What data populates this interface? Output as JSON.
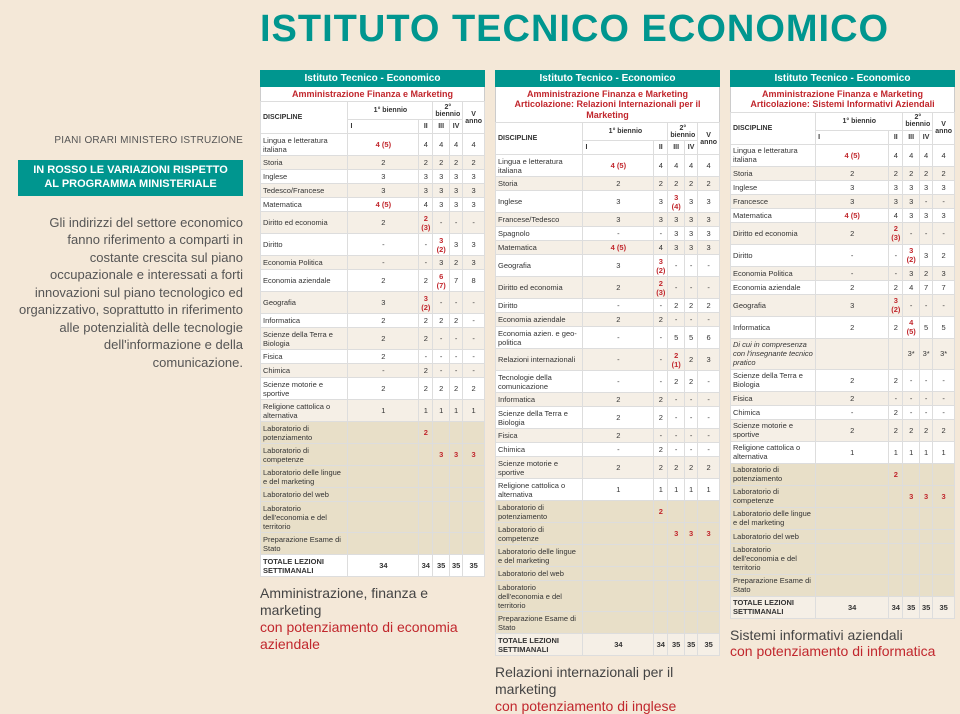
{
  "pageTitle": "ISTITUTO TECNICO ECONOMICO",
  "piani": "PIANI ORARI MINISTERO ISTRUZIONE",
  "variazioni": "IN ROSSO LE VARIAZIONI RISPETTO AL PROGRAMMA MINISTERIALE",
  "intro": "Gli indirizzi del settore economico fanno riferimento a comparti in costante crescita sul piano occupazionale e interessati a forti innovazioni sul piano tecnologico ed organizzativo, soprattutto in riferimento alle potenzialità delle tecnologie dell'informazione e della comunicazione.",
  "hdr": {
    "top": "Istituto Tecnico - Economico",
    "b1": "1° biennio",
    "b2": "2° biennio",
    "disc": "DISCIPLINE",
    "i": "I",
    "ii": "II",
    "iii": "III",
    "iv": "IV",
    "v": "V anno"
  },
  "sub": {
    "t1": "Amministrazione Finanza e Marketing",
    "t2": "Amministrazione Finanza e Marketing Articolazione: Relazioni Internazionali per il Marketing",
    "t3": "Amministrazione Finanza e Marketing Articolazione: Sistemi Informativi Aziendali"
  },
  "tables": {
    "t1": [
      {
        "n": "Lingua e letteratura italiana",
        "v": [
          "4 (5)",
          "4",
          "4",
          "4",
          "4"
        ],
        "r": [
          true,
          false,
          false,
          false,
          false
        ]
      },
      {
        "n": "Storia",
        "v": [
          "2",
          "2",
          "2",
          "2",
          "2"
        ]
      },
      {
        "n": "Inglese",
        "v": [
          "3",
          "3",
          "3",
          "3",
          "3"
        ]
      },
      {
        "n": "Tedesco/Francese",
        "v": [
          "3",
          "3",
          "3",
          "3",
          "3"
        ]
      },
      {
        "n": "Matematica",
        "v": [
          "4 (5)",
          "4",
          "3",
          "3",
          "3"
        ],
        "r": [
          true,
          false,
          false,
          false,
          false
        ]
      },
      {
        "n": "Diritto ed economia",
        "v": [
          "2",
          "2 (3)",
          "-",
          "-",
          "-"
        ],
        "r": [
          false,
          true,
          false,
          false,
          false
        ]
      },
      {
        "n": "Diritto",
        "v": [
          "-",
          "-",
          "3 (2)",
          "3",
          "3"
        ],
        "r": [
          false,
          false,
          true,
          false,
          false
        ]
      },
      {
        "n": "Economia Politica",
        "v": [
          "-",
          "-",
          "3",
          "2",
          "3"
        ]
      },
      {
        "n": "Economia aziendale",
        "v": [
          "2",
          "2",
          "6 (7)",
          "7",
          "8"
        ],
        "r": [
          false,
          false,
          true,
          false,
          false
        ]
      },
      {
        "n": "Geografia",
        "v": [
          "3",
          "3 (2)",
          "-",
          "-",
          "-"
        ],
        "r": [
          false,
          true,
          false,
          false,
          false
        ]
      },
      {
        "n": "Informatica",
        "v": [
          "2",
          "2",
          "2",
          "2",
          "-"
        ]
      },
      {
        "n": "Scienze della Terra e Biologia",
        "v": [
          "2",
          "2",
          "-",
          "-",
          "-"
        ]
      },
      {
        "n": "Fisica",
        "v": [
          "2",
          "-",
          "-",
          "-",
          "-"
        ]
      },
      {
        "n": "Chimica",
        "v": [
          "-",
          "2",
          "-",
          "-",
          "-"
        ]
      },
      {
        "n": "Scienze motorie e sportive",
        "v": [
          "2",
          "2",
          "2",
          "2",
          "2"
        ]
      },
      {
        "n": "Religione cattolica o alternativa",
        "v": [
          "1",
          "1",
          "1",
          "1",
          "1"
        ]
      },
      {
        "n": "Laboratorio di potenziamento",
        "v": [
          "",
          "2",
          "",
          "",
          ""
        ],
        "lab": true,
        "r": [
          false,
          true,
          false,
          false,
          false
        ]
      },
      {
        "n": "Laboratorio di competenze",
        "v": [
          "",
          "",
          "3",
          "3",
          "3"
        ],
        "lab": true,
        "r": [
          false,
          false,
          true,
          true,
          true
        ]
      },
      {
        "n": "Laboratorio delle lingue e del marketing",
        "v": [
          "",
          "",
          "",
          "",
          ""
        ],
        "lab": true
      },
      {
        "n": "Laboratorio del web",
        "v": [
          "",
          "",
          "",
          "",
          ""
        ],
        "lab": true
      },
      {
        "n": "Laboratorio dell'economia e del territorio",
        "v": [
          "",
          "",
          "",
          "",
          ""
        ],
        "lab": true
      },
      {
        "n": "Preparazione Esame di Stato",
        "v": [
          "",
          "",
          "",
          "",
          ""
        ],
        "lab": true
      },
      {
        "n": "TOTALE LEZIONI SETTIMANALI",
        "v": [
          "34",
          "34",
          "35",
          "35",
          "35"
        ],
        "tot": true
      }
    ],
    "t2": [
      {
        "n": "Lingua e letteratura italiana",
        "v": [
          "4 (5)",
          "4",
          "4",
          "4",
          "4"
        ],
        "r": [
          true,
          false,
          false,
          false,
          false
        ]
      },
      {
        "n": "Storia",
        "v": [
          "2",
          "2",
          "2",
          "2",
          "2"
        ]
      },
      {
        "n": "Inglese",
        "v": [
          "3",
          "3",
          "3 (4)",
          "3",
          "3"
        ],
        "r": [
          false,
          false,
          true,
          false,
          false
        ]
      },
      {
        "n": "Francese/Tedesco",
        "v": [
          "3",
          "3",
          "3",
          "3",
          "3"
        ]
      },
      {
        "n": "Spagnolo",
        "v": [
          "-",
          "-",
          "3",
          "3",
          "3"
        ]
      },
      {
        "n": "Matematica",
        "v": [
          "4 (5)",
          "4",
          "3",
          "3",
          "3"
        ],
        "r": [
          true,
          false,
          false,
          false,
          false
        ]
      },
      {
        "n": "Geografia",
        "v": [
          "3",
          "3 (2)",
          "-",
          "-",
          "-"
        ],
        "r": [
          false,
          true,
          false,
          false,
          false
        ]
      },
      {
        "n": "Diritto ed economia",
        "v": [
          "2",
          "2 (3)",
          "-",
          "-",
          "-"
        ],
        "r": [
          false,
          true,
          false,
          false,
          false
        ]
      },
      {
        "n": "Diritto",
        "v": [
          "-",
          "-",
          "2",
          "2",
          "2"
        ]
      },
      {
        "n": "Economia aziendale",
        "v": [
          "2",
          "2",
          "-",
          "-",
          "-"
        ]
      },
      {
        "n": "Economia azien. e geo-politica",
        "v": [
          "-",
          "-",
          "5",
          "5",
          "6"
        ]
      },
      {
        "n": "Relazioni internazionali",
        "v": [
          "-",
          "-",
          "2 (1)",
          "2",
          "3"
        ],
        "r": [
          false,
          false,
          true,
          false,
          false
        ]
      },
      {
        "n": "Tecnologie della comunicazione",
        "v": [
          "-",
          "-",
          "2",
          "2",
          "-"
        ]
      },
      {
        "n": "Informatica",
        "v": [
          "2",
          "2",
          "-",
          "-",
          "-"
        ]
      },
      {
        "n": "Scienze della Terra e Biologia",
        "v": [
          "2",
          "2",
          "-",
          "-",
          "-"
        ]
      },
      {
        "n": "Fisica",
        "v": [
          "2",
          "-",
          "-",
          "-",
          "-"
        ]
      },
      {
        "n": "Chimica",
        "v": [
          "-",
          "2",
          "-",
          "-",
          "-"
        ]
      },
      {
        "n": "Scienze motorie e sportive",
        "v": [
          "2",
          "2",
          "2",
          "2",
          "2"
        ]
      },
      {
        "n": "Religione cattolica o alternativa",
        "v": [
          "1",
          "1",
          "1",
          "1",
          "1"
        ]
      },
      {
        "n": "Laboratorio di potenziamento",
        "v": [
          "",
          "2",
          "",
          "",
          ""
        ],
        "lab": true,
        "r": [
          false,
          true,
          false,
          false,
          false
        ]
      },
      {
        "n": "Laboratorio di competenze",
        "v": [
          "",
          "",
          "3",
          "3",
          "3"
        ],
        "lab": true,
        "r": [
          false,
          false,
          true,
          true,
          true
        ]
      },
      {
        "n": "Laboratorio delle lingue e del marketing",
        "v": [
          "",
          "",
          "",
          "",
          ""
        ],
        "lab": true
      },
      {
        "n": "Laboratorio del web",
        "v": [
          "",
          "",
          "",
          "",
          ""
        ],
        "lab": true
      },
      {
        "n": "Laboratorio dell'economia e del territorio",
        "v": [
          "",
          "",
          "",
          "",
          ""
        ],
        "lab": true
      },
      {
        "n": "Preparazione Esame di Stato",
        "v": [
          "",
          "",
          "",
          "",
          ""
        ],
        "lab": true
      },
      {
        "n": "TOTALE LEZIONI SETTIMANALI",
        "v": [
          "34",
          "34",
          "35",
          "35",
          "35"
        ],
        "tot": true
      }
    ],
    "t3": [
      {
        "n": "Lingua e letteratura italiana",
        "v": [
          "4 (5)",
          "4",
          "4",
          "4",
          "4"
        ],
        "r": [
          true,
          false,
          false,
          false,
          false
        ]
      },
      {
        "n": "Storia",
        "v": [
          "2",
          "2",
          "2",
          "2",
          "2"
        ]
      },
      {
        "n": "Inglese",
        "v": [
          "3",
          "3",
          "3",
          "3",
          "3"
        ]
      },
      {
        "n": "Francesce",
        "v": [
          "3",
          "3",
          "3",
          "-",
          "-"
        ]
      },
      {
        "n": "Matematica",
        "v": [
          "4 (5)",
          "4",
          "3",
          "3",
          "3"
        ],
        "r": [
          true,
          false,
          false,
          false,
          false
        ]
      },
      {
        "n": "Diritto ed economia",
        "v": [
          "2",
          "2 (3)",
          "-",
          "-",
          "-"
        ],
        "r": [
          false,
          true,
          false,
          false,
          false
        ]
      },
      {
        "n": "Diritto",
        "v": [
          "-",
          "-",
          "3 (2)",
          "3",
          "2"
        ],
        "r": [
          false,
          false,
          true,
          false,
          false
        ]
      },
      {
        "n": "Economia Politica",
        "v": [
          "-",
          "-",
          "3",
          "2",
          "3"
        ]
      },
      {
        "n": "Economia aziendale",
        "v": [
          "2",
          "2",
          "4",
          "7",
          "7"
        ]
      },
      {
        "n": "Geografia",
        "v": [
          "3",
          "3 (2)",
          "-",
          "-",
          "-"
        ],
        "r": [
          false,
          true,
          false,
          false,
          false
        ]
      },
      {
        "n": "Informatica",
        "v": [
          "2",
          "2",
          "4 (5)",
          "5",
          "5"
        ],
        "r": [
          false,
          false,
          true,
          false,
          false
        ]
      },
      {
        "n": "Di cui in compresenza con l'insegnante tecnico pratico",
        "v": [
          "",
          "",
          "3*",
          "3*",
          "3*"
        ],
        "ital": true
      },
      {
        "n": "Scienze della Terra e Biologia",
        "v": [
          "2",
          "2",
          "-",
          "-",
          "-"
        ]
      },
      {
        "n": "Fisica",
        "v": [
          "2",
          "-",
          "-",
          "-",
          "-"
        ]
      },
      {
        "n": "Chimica",
        "v": [
          "-",
          "2",
          "-",
          "-",
          "-"
        ]
      },
      {
        "n": "Scienze motorie e sportive",
        "v": [
          "2",
          "2",
          "2",
          "2",
          "2"
        ]
      },
      {
        "n": "Religione cattolica o alternativa",
        "v": [
          "1",
          "1",
          "1",
          "1",
          "1"
        ]
      },
      {
        "n": "Laboratorio di potenziamento",
        "v": [
          "",
          "2",
          "",
          "",
          ""
        ],
        "lab": true,
        "r": [
          false,
          true,
          false,
          false,
          false
        ]
      },
      {
        "n": "Laboratorio di competenze",
        "v": [
          "",
          "",
          "3",
          "3",
          "3"
        ],
        "lab": true,
        "r": [
          false,
          false,
          true,
          true,
          true
        ]
      },
      {
        "n": "Laboratorio delle lingue e del marketing",
        "v": [
          "",
          "",
          "",
          "",
          ""
        ],
        "lab": true
      },
      {
        "n": "Laboratorio del web",
        "v": [
          "",
          "",
          "",
          "",
          ""
        ],
        "lab": true
      },
      {
        "n": "Laboratorio dell'economia e del territorio",
        "v": [
          "",
          "",
          "",
          "",
          ""
        ],
        "lab": true
      },
      {
        "n": "Preparazione Esame di Stato",
        "v": [
          "",
          "",
          "",
          "",
          ""
        ],
        "lab": true
      },
      {
        "n": "TOTALE LEZIONI SETTIMANALI",
        "v": [
          "34",
          "34",
          "35",
          "35",
          "35"
        ],
        "tot": true
      }
    ]
  },
  "captions": {
    "c1a": "Amministrazione, finanza e marketing",
    "c1b": "con potenziamento di economia aziendale",
    "c2a": "Relazioni internazionali per il marketing",
    "c2b": "con potenziamento di inglese",
    "c3a": "Sistemi informativi aziendali",
    "c3b": "con potenziamento di informatica"
  }
}
